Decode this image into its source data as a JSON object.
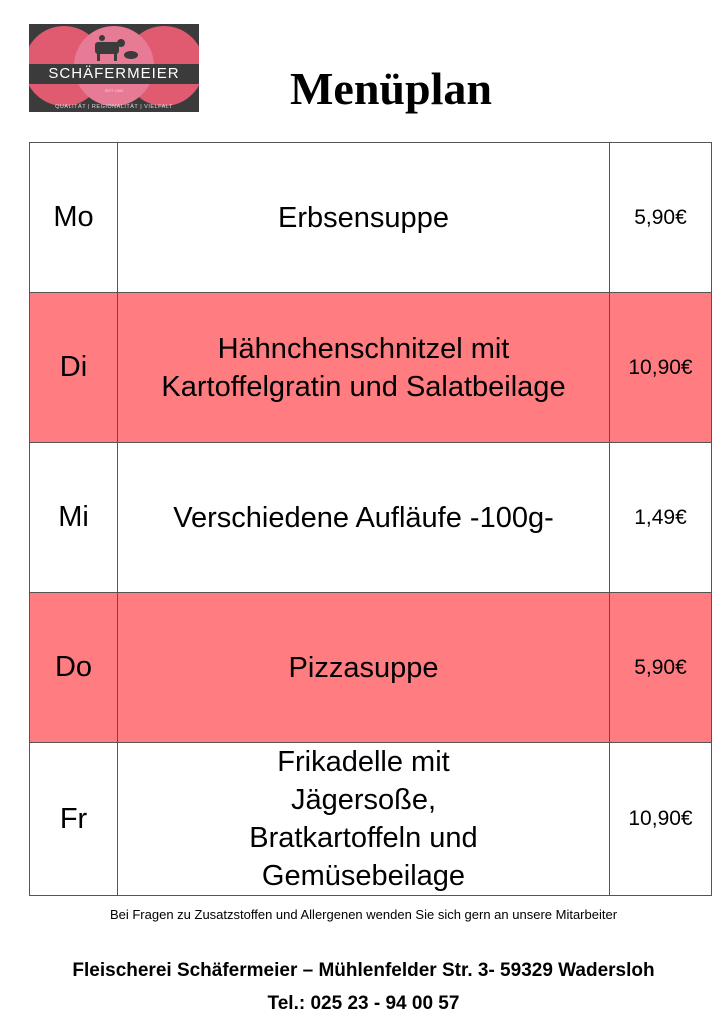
{
  "logo": {
    "brand": "SCHÄFERMEIER",
    "since": "SEIT 1983",
    "tagline": "QUALITÄT | REGIONALITÄT | VIELFALT"
  },
  "title": "Menüplan",
  "colors": {
    "highlight": "#ff7c80",
    "logo_bg": "#3b3b3b",
    "logo_circle": "#e05a70"
  },
  "menu": [
    {
      "day": "Mo",
      "dish": "Erbsensuppe",
      "price": "5,90€",
      "highlight": false
    },
    {
      "day": "Di",
      "dish": "Hähnchenschnitzel mit Kartoffelgratin und Salatbeilage",
      "price": "10,90€",
      "highlight": true
    },
    {
      "day": "Mi",
      "dish": "Verschiedene Aufläufe  -100g-",
      "price": "1,49€",
      "highlight": false
    },
    {
      "day": "Do",
      "dish": "Pizzasuppe",
      "price": "5,90€",
      "highlight": true
    },
    {
      "day": "Fr",
      "dish": "Frikadelle mit Jägersoße, Bratkartoffeln und Gemüsebeilage",
      "price": "10,90€",
      "highlight": false
    }
  ],
  "footer": {
    "note": "Bei Fragen zu Zusatzstoffen und Allergenen wenden Sie sich gern an unsere Mitarbeiter",
    "address": "Fleischerei Schäfermeier – Mühlenfelder Str. 3- 59329 Wadersloh",
    "phone": "Tel.: 025 23 - 94 00 57"
  }
}
